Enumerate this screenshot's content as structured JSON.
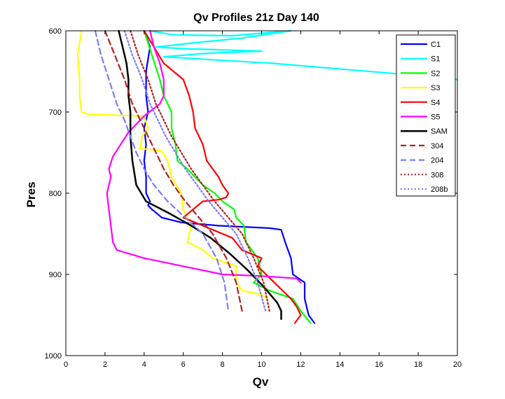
{
  "chart_data": {
    "type": "line",
    "title": "Qv Profiles 21z Day 140",
    "xlabel": "Qv",
    "ylabel": "Pres",
    "xlim": [
      0,
      20
    ],
    "ylim": [
      600,
      1000
    ],
    "y_reversed": true,
    "xticks": [
      "0",
      "2",
      "4",
      "6",
      "8",
      "10",
      "12",
      "14",
      "16",
      "18",
      "20"
    ],
    "yticks": [
      "600",
      "700",
      "800",
      "900",
      "1000"
    ],
    "legend_position": "top-right",
    "grid": false,
    "series": [
      {
        "name": "C1",
        "color": "#0000ff",
        "dash": "solid",
        "x": [
          4.0,
          4.3,
          4.1,
          4.1,
          4.2,
          4.0,
          4.1,
          4.0,
          4.1,
          4.1,
          4.3,
          4.2,
          4.4,
          4.9,
          5.9,
          7.8,
          10.4,
          11.0,
          11.2,
          11.5,
          11.6,
          12.2,
          12.2,
          12.4,
          12.7
        ],
        "y": [
          600,
          620,
          650,
          680,
          700,
          720,
          740,
          760,
          780,
          800,
          810,
          815,
          820,
          830,
          836,
          840,
          843,
          845,
          860,
          880,
          900,
          910,
          930,
          950,
          960
        ]
      },
      {
        "name": "S1",
        "color": "#00ffff",
        "dash": "solid",
        "x": [
          4.3,
          5.5,
          8.5,
          11.5,
          9.0,
          6.5,
          4.6,
          6.0,
          10.0,
          7.0,
          5.0,
          10.5,
          14.5,
          18.0,
          20.0
        ],
        "y": [
          600,
          605,
          606,
          600,
          609,
          615,
          620,
          622,
          625,
          628,
          632,
          640,
          648,
          655,
          660
        ]
      },
      {
        "name": "S2",
        "color": "#00ff00",
        "dash": "solid",
        "x": [
          4.0,
          4.4,
          4.8,
          5.0,
          5.4,
          5.4,
          5.6,
          5.7,
          6.2,
          6.6,
          7.0,
          7.6,
          8.0,
          8.6,
          8.7,
          9.1,
          9.2,
          9.8,
          10.0,
          9.6,
          10.4,
          11.6,
          12.0,
          12.5
        ],
        "y": [
          600,
          630,
          660,
          680,
          700,
          720,
          740,
          760,
          770,
          780,
          790,
          800,
          810,
          820,
          830,
          840,
          860,
          880,
          900,
          910,
          920,
          930,
          945,
          960
        ]
      },
      {
        "name": "S3",
        "color": "#ffff00",
        "dash": "solid",
        "x": [
          0.8,
          0.6,
          0.7,
          0.7,
          0.8,
          1.2,
          4.0,
          4.2,
          3.9,
          3.8,
          4.9,
          5.2,
          5.4,
          5.9,
          6.0,
          6.4,
          6.2,
          7.0,
          7.5,
          8.7,
          8.7,
          9.0,
          10.0,
          10.3
        ],
        "y": [
          600,
          630,
          660,
          680,
          700,
          703,
          705,
          720,
          730,
          745,
          748,
          760,
          780,
          800,
          820,
          840,
          860,
          870,
          880,
          890,
          910,
          920,
          925,
          930
        ]
      },
      {
        "name": "S4",
        "color": "#ff0000",
        "dash": "solid",
        "x": [
          4.0,
          4.5,
          5.0,
          6.0,
          6.3,
          6.5,
          6.6,
          7.0,
          7.2,
          7.8,
          8.0,
          8.3,
          8.2,
          7.8,
          7.0,
          6.0,
          7.0,
          8.5,
          9.0,
          10.0,
          9.8,
          11.5,
          11.8,
          12.0,
          11.7
        ],
        "y": [
          600,
          620,
          640,
          660,
          680,
          700,
          720,
          740,
          760,
          780,
          790,
          800,
          805,
          808,
          810,
          830,
          840,
          855,
          870,
          880,
          890,
          930,
          940,
          950,
          960
        ]
      },
      {
        "name": "S5",
        "color": "#ff00ff",
        "dash": "solid",
        "x": [
          4.3,
          4.5,
          4.8,
          5.0,
          5.0,
          4.8,
          4.0,
          3.2,
          2.4,
          2.2,
          2.3,
          2.1,
          2.2,
          2.3,
          2.4,
          2.6,
          4.0,
          6.0,
          8.0,
          10.0,
          11.8,
          12.0
        ],
        "y": [
          600,
          620,
          640,
          660,
          680,
          690,
          705,
          725,
          755,
          770,
          780,
          800,
          820,
          840,
          860,
          870,
          880,
          890,
          900,
          902,
          905,
          910
        ]
      },
      {
        "name": "SAM",
        "color": "#000000",
        "dash": "solid",
        "width": 2.5,
        "x": [
          2.7,
          2.9,
          3.1,
          3.2,
          3.2,
          3.3,
          3.3,
          3.4,
          3.6,
          4.1,
          5.3,
          6.4,
          7.4,
          8.4,
          9.3,
          10.1,
          10.8,
          11.0,
          11.0
        ],
        "y": [
          600,
          620,
          640,
          660,
          680,
          700,
          730,
          760,
          790,
          810,
          825,
          840,
          855,
          875,
          895,
          915,
          935,
          945,
          955
        ]
      },
      {
        "name": "304",
        "color": "#b22222",
        "dash": "dash",
        "x": [
          2.0,
          2.5,
          3.0,
          3.4,
          3.8,
          4.2,
          4.6,
          5.0,
          5.5,
          6.1,
          6.8,
          7.5,
          8.2,
          8.7,
          9.0
        ],
        "y": [
          600,
          630,
          660,
          690,
          710,
          730,
          750,
          770,
          790,
          810,
          830,
          850,
          880,
          910,
          945
        ]
      },
      {
        "name": "204",
        "color": "#7b7bff",
        "dash": "dash",
        "x": [
          1.5,
          1.8,
          2.2,
          2.6,
          3.0,
          3.3,
          3.6,
          4.0,
          4.5,
          5.2,
          6.1,
          7.0,
          7.7,
          8.1,
          8.3
        ],
        "y": [
          600,
          630,
          660,
          690,
          710,
          730,
          750,
          770,
          790,
          810,
          830,
          850,
          880,
          910,
          945
        ]
      },
      {
        "name": "308",
        "color": "#b22222",
        "dash": "dot",
        "x": [
          3.3,
          3.7,
          4.2,
          4.6,
          5.0,
          5.4,
          5.9,
          6.4,
          7.0,
          7.6,
          8.3,
          9.0,
          9.6,
          10.1,
          10.4
        ],
        "y": [
          600,
          630,
          660,
          690,
          710,
          730,
          750,
          770,
          790,
          810,
          830,
          850,
          880,
          910,
          945
        ]
      },
      {
        "name": "208b",
        "color": "#7b7bff",
        "dash": "dot",
        "x": [
          3.0,
          3.4,
          3.9,
          4.3,
          4.7,
          5.1,
          5.6,
          6.1,
          6.7,
          7.3,
          8.0,
          8.7,
          9.3,
          9.8,
          10.2
        ],
        "y": [
          600,
          630,
          660,
          690,
          710,
          730,
          750,
          770,
          790,
          810,
          830,
          850,
          880,
          910,
          945
        ]
      }
    ]
  }
}
